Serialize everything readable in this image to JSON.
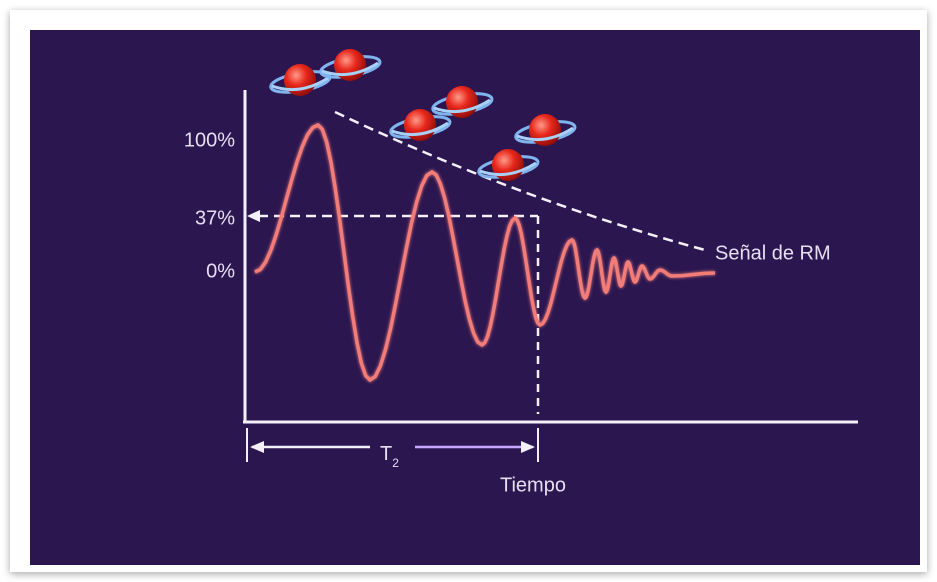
{
  "axis_labels": {
    "top": "100%",
    "middle": "37%",
    "bottom": "0%"
  },
  "curve_label": "Señal de RM",
  "interval_label": {
    "text": "T",
    "subscript": "2"
  },
  "x_axis_label": "Tiempo"
}
